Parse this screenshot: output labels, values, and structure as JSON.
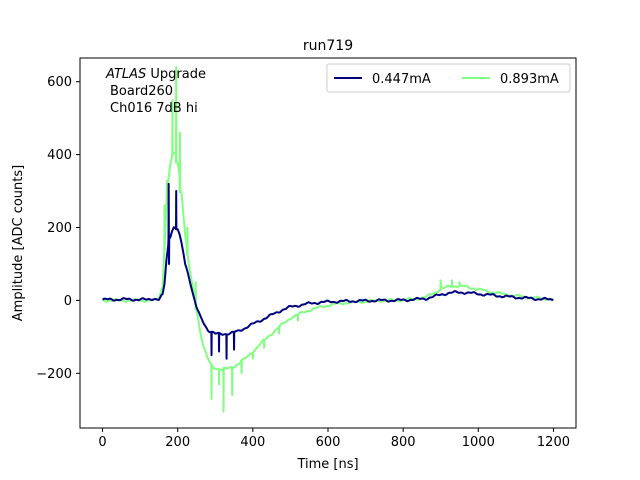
{
  "chart_data": {
    "type": "line",
    "title": "run719",
    "xlabel": "Time [ns]",
    "ylabel": "Amplitude [ADC counts]",
    "xlim": [
      -60,
      1260
    ],
    "ylim": [
      -350,
      665
    ],
    "xticks": [
      0,
      200,
      400,
      600,
      800,
      1000,
      1200
    ],
    "yticks": [
      -200,
      0,
      200,
      400,
      600
    ],
    "ytick_labels": [
      "−200",
      "0",
      "200",
      "400",
      "600"
    ],
    "grid": false,
    "legend_position": "top-right",
    "annotations": {
      "line1_italic": "ATLAS",
      "line1_rest": " Upgrade",
      "line2": "Board260",
      "line3": "Ch016 7dB hi"
    },
    "series": [
      {
        "name": "0.447mA",
        "color": "#000080",
        "x": [
          0,
          60,
          120,
          150,
          160,
          165,
          170,
          175,
          180,
          185,
          190,
          195,
          200,
          205,
          210,
          215,
          220,
          230,
          240,
          250,
          260,
          270,
          280,
          290,
          300,
          320,
          340,
          360,
          380,
          400,
          420,
          440,
          460,
          480,
          500,
          540,
          580,
          620,
          660,
          700,
          740,
          780,
          820,
          860,
          880,
          900,
          920,
          940,
          960,
          980,
          1000,
          1040,
          1080,
          1120,
          1160,
          1200
        ],
        "y": [
          2,
          3,
          2,
          4,
          15,
          50,
          110,
          150,
          175,
          190,
          198,
          200,
          195,
          180,
          160,
          130,
          100,
          60,
          20,
          -15,
          -45,
          -65,
          -80,
          -88,
          -92,
          -92,
          -90,
          -85,
          -75,
          -65,
          -55,
          -45,
          -35,
          -25,
          -18,
          -10,
          -5,
          -3,
          -2,
          -1,
          0,
          0,
          2,
          5,
          10,
          16,
          20,
          22,
          22,
          20,
          18,
          14,
          10,
          7,
          4,
          2
        ],
        "spikes": [
          [
            176,
            320
          ],
          [
            177,
            100
          ],
          [
            196,
            300
          ],
          [
            290,
            -150
          ],
          [
            310,
            -140
          ],
          [
            330,
            -160
          ],
          [
            350,
            -135
          ]
        ]
      },
      {
        "name": "0.893mA",
        "color": "#80ff80",
        "x": [
          0,
          60,
          120,
          150,
          160,
          165,
          170,
          175,
          180,
          185,
          190,
          195,
          200,
          205,
          210,
          215,
          220,
          230,
          240,
          250,
          260,
          270,
          280,
          290,
          300,
          320,
          340,
          360,
          380,
          400,
          420,
          440,
          460,
          480,
          500,
          540,
          580,
          620,
          660,
          700,
          740,
          780,
          820,
          860,
          880,
          900,
          920,
          940,
          960,
          980,
          1000,
          1040,
          1080,
          1120,
          1160,
          1200
        ],
        "y": [
          0,
          0,
          0,
          5,
          40,
          140,
          260,
          330,
          370,
          395,
          405,
          400,
          380,
          345,
          295,
          240,
          180,
          100,
          35,
          -25,
          -85,
          -130,
          -160,
          -178,
          -185,
          -190,
          -185,
          -175,
          -160,
          -140,
          -120,
          -100,
          -82,
          -65,
          -48,
          -30,
          -18,
          -10,
          -5,
          -3,
          0,
          0,
          3,
          8,
          20,
          30,
          38,
          40,
          38,
          35,
          30,
          22,
          15,
          10,
          6,
          3
        ],
        "spikes": [
          [
            165,
            260
          ],
          [
            172,
            265
          ],
          [
            186,
            550
          ],
          [
            196,
            640
          ],
          [
            206,
            460
          ],
          [
            226,
            200
          ],
          [
            248,
            50
          ],
          [
            290,
            -270
          ],
          [
            310,
            -230
          ],
          [
            322,
            -305
          ],
          [
            345,
            -260
          ],
          [
            370,
            -200
          ],
          [
            400,
            -160
          ],
          [
            430,
            -130
          ],
          [
            470,
            -90
          ],
          [
            520,
            -55
          ],
          [
            900,
            55
          ],
          [
            930,
            55
          ],
          [
            950,
            50
          ]
        ]
      }
    ]
  }
}
